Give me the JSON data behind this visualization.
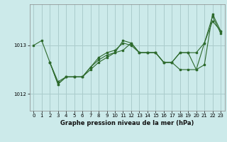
{
  "title": "Graphe pression niveau de la mer (hPa)",
  "bg_color": "#cceaea",
  "grid_color": "#aacccc",
  "line_color": "#2d6a2d",
  "xlim": [
    -0.5,
    23.5
  ],
  "ylim": [
    1011.65,
    1013.85
  ],
  "yticks": [
    1012,
    1013
  ],
  "xticks": [
    0,
    1,
    2,
    3,
    4,
    5,
    6,
    7,
    8,
    9,
    10,
    11,
    12,
    13,
    14,
    15,
    16,
    17,
    18,
    19,
    20,
    21,
    22,
    23
  ],
  "series1": {
    "x": [
      0,
      1,
      2,
      3,
      4,
      5,
      6,
      7,
      8,
      9,
      10,
      11,
      12,
      13,
      14,
      15,
      16,
      17,
      18,
      19,
      20,
      21,
      22,
      23
    ],
    "y": [
      1013.0,
      1013.1,
      1012.65,
      1012.25,
      1012.35,
      1012.35,
      1012.35,
      1012.5,
      1012.65,
      1012.75,
      1012.85,
      1012.9,
      1013.05,
      1012.85,
      1012.85,
      1012.85,
      1012.65,
      1012.65,
      1012.85,
      1012.85,
      1012.85,
      1013.05,
      1013.5,
      1013.3
    ]
  },
  "series2": {
    "x": [
      2,
      3,
      4,
      5,
      6,
      7,
      8,
      9,
      10,
      11,
      12,
      13,
      14,
      15,
      16,
      17,
      18,
      19,
      20,
      21,
      22,
      23
    ],
    "y": [
      1012.65,
      1012.2,
      1012.35,
      1012.35,
      1012.35,
      1012.55,
      1012.7,
      1012.8,
      1012.85,
      1013.1,
      1013.05,
      1012.85,
      1012.85,
      1012.85,
      1012.65,
      1012.65,
      1012.5,
      1012.5,
      1012.5,
      1013.05,
      1013.6,
      1013.25
    ]
  },
  "series3": {
    "x": [
      2,
      3,
      4,
      5,
      6,
      7,
      8,
      9,
      10,
      11,
      12,
      13,
      14,
      15,
      16,
      17,
      18,
      19,
      20,
      21,
      22,
      23
    ],
    "y": [
      1012.65,
      1012.2,
      1012.35,
      1012.35,
      1012.35,
      1012.55,
      1012.75,
      1012.85,
      1012.9,
      1013.05,
      1013.0,
      1012.85,
      1012.85,
      1012.85,
      1012.65,
      1012.65,
      1012.85,
      1012.85,
      1012.5,
      1012.6,
      1013.65,
      1013.3
    ]
  }
}
